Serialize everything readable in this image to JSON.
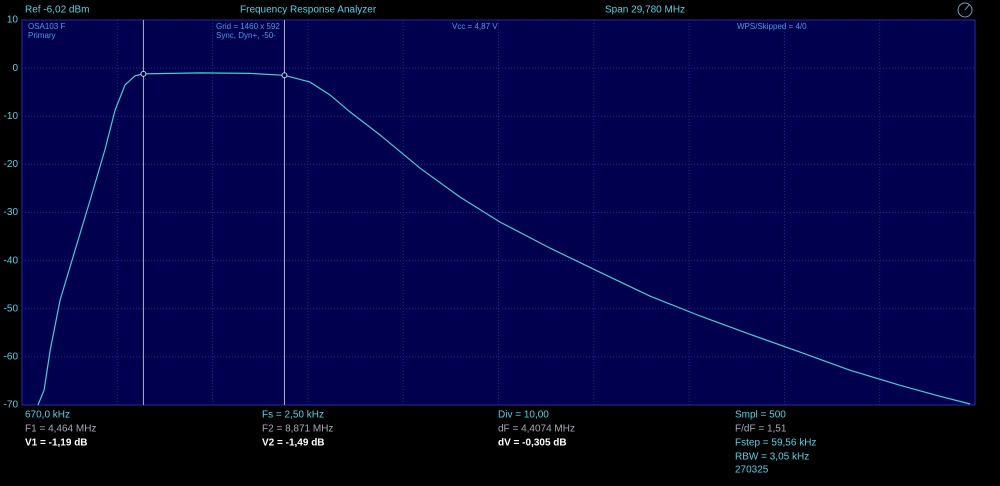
{
  "header": {
    "ref": "Ref  -6,02 dBm",
    "title": "Frequency Response Analyzer",
    "span": "Span 29,780 MHz"
  },
  "info": {
    "device": "OSA103 F",
    "channel": "Primary",
    "grid": "Grid = 1460 x 592",
    "sync": "Sync,  Dyn+,  -50-",
    "vcc": "Vcc = 4,87 V",
    "wps": "WPS/Skipped  = 4/0"
  },
  "chart_data": {
    "type": "line",
    "x": [
      1.17,
      1.36,
      1.55,
      1.86,
      2.33,
      2.8,
      3.26,
      3.58,
      3.89,
      4.2,
      4.464,
      6.23,
      7.8,
      8.871,
      9.67,
      10.3,
      10.92,
      11.86,
      13.11,
      14.36,
      15.61,
      17.17,
      18.73,
      20.3,
      21.86,
      23.42,
      24.98,
      26.55,
      28.11,
      29.36,
      30.3
    ],
    "series": [
      {
        "name": "Primary",
        "color": "#3fd0d0",
        "values": [
          -70,
          -66.9,
          -58.6,
          -48.2,
          -37.8,
          -27.4,
          -17.0,
          -8.7,
          -3.5,
          -1.6,
          -1.19,
          -1.0,
          -1.1,
          -1.49,
          -2.9,
          -5.6,
          -9.1,
          -13.9,
          -20.8,
          -26.8,
          -32.0,
          -37.4,
          -42.4,
          -47.4,
          -51.5,
          -55.3,
          -59.0,
          -62.8,
          -65.9,
          -68.2,
          -69.8
        ]
      }
    ],
    "markers": [
      {
        "x": 4.464,
        "y": -1.19
      },
      {
        "x": 8.871,
        "y": -1.49
      }
    ],
    "xlim": [
      0.67,
      30.45
    ],
    "ylim": [
      -70,
      10
    ],
    "yticks": [
      10,
      0,
      -10,
      -20,
      -30,
      -40,
      -50,
      -60,
      -70
    ],
    "grid": true
  },
  "readouts": [
    [
      "670,0 kHz",
      "F1 = 4,464 MHz",
      "V1 = -1,19 dB"
    ],
    [
      "Fs = 2,50 kHz",
      "F2 = 8,871 MHz",
      "V2 = -1,49 dB"
    ],
    [
      "Div = 10,00",
      "dF = 4,4074 MHz",
      "dV = -0,305 dB"
    ],
    [
      "Smpl = 500",
      "F/dF = 1,51",
      "Fstep = 59,56 kHz",
      "RBW = 3,05 kHz",
      "270325"
    ]
  ]
}
